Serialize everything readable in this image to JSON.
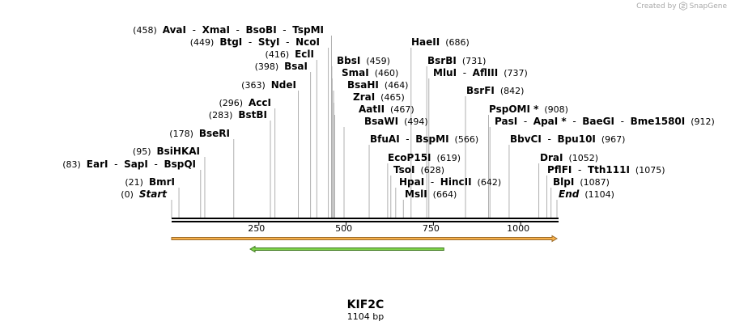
{
  "watermark": {
    "text": "Created by",
    "brand": "SnapGene"
  },
  "sequence": {
    "name": "KIF2C",
    "length_label": "1104 bp",
    "length": 1104
  },
  "ruler_ticks": [
    {
      "value": 250,
      "label": "250"
    },
    {
      "value": 500,
      "label": "500"
    },
    {
      "value": 750,
      "label": "750"
    },
    {
      "value": 1000,
      "label": "1000"
    }
  ],
  "features": [
    {
      "name": "orf-orange",
      "start": 0,
      "end": 1104,
      "direction": "forward",
      "color": "#f7b04a",
      "edge_color": "#9a6a2a"
    },
    {
      "name": "orf-green",
      "start": 225,
      "end": 780,
      "direction": "reverse",
      "color": "#7fd34a",
      "edge_color": "#3f7a1f"
    }
  ],
  "sites": [
    {
      "pos": 458,
      "names": [
        "AvaI",
        "XmaI",
        "BsoBI",
        "TspMI"
      ],
      "pos_label": "(458)",
      "side": "left",
      "star": [],
      "italic": false
    },
    {
      "pos": 449,
      "names": [
        "BtgI",
        "StyI",
        "NcoI"
      ],
      "pos_label": "(449)",
      "side": "left",
      "star": [],
      "italic": false
    },
    {
      "pos": 416,
      "names": [
        "EclI"
      ],
      "pos_label": "(416)",
      "side": "left",
      "star": [],
      "italic": false
    },
    {
      "pos": 398,
      "names": [
        "BsaI"
      ],
      "pos_label": "(398)",
      "side": "left",
      "star": [],
      "italic": false
    },
    {
      "pos": 363,
      "names": [
        "NdeI"
      ],
      "pos_label": "(363)",
      "side": "left",
      "star": [],
      "italic": false
    },
    {
      "pos": 296,
      "names": [
        "AccI"
      ],
      "pos_label": "(296)",
      "side": "left",
      "star": [],
      "italic": false
    },
    {
      "pos": 283,
      "names": [
        "BstBI"
      ],
      "pos_label": "(283)",
      "side": "left",
      "star": [],
      "italic": false
    },
    {
      "pos": 178,
      "names": [
        "BseRI"
      ],
      "pos_label": "(178)",
      "side": "left",
      "star": [],
      "italic": false
    },
    {
      "pos": 95,
      "names": [
        "BsiHKAI"
      ],
      "pos_label": "(95)",
      "side": "left",
      "star": [],
      "italic": false
    },
    {
      "pos": 83,
      "names": [
        "EarI",
        "SapI",
        "BspQI"
      ],
      "pos_label": "(83)",
      "side": "left",
      "star": [],
      "italic": false
    },
    {
      "pos": 21,
      "names": [
        "BmrI"
      ],
      "pos_label": "(21)",
      "side": "left",
      "star": [],
      "italic": false
    },
    {
      "pos": 0,
      "names": [
        "Start"
      ],
      "pos_label": "(0)",
      "side": "left",
      "star": [],
      "italic": true
    },
    {
      "pos": 686,
      "names": [
        "HaeII"
      ],
      "pos_label": "(686)",
      "side": "right",
      "star": [],
      "italic": false
    },
    {
      "pos": 459,
      "names": [
        "BbsI"
      ],
      "pos_label": "(459)",
      "side": "right",
      "star": [],
      "italic": false
    },
    {
      "pos": 731,
      "names": [
        "BsrBI"
      ],
      "pos_label": "(731)",
      "side": "right",
      "star": [],
      "italic": false
    },
    {
      "pos": 460,
      "names": [
        "SmaI"
      ],
      "pos_label": "(460)",
      "side": "right",
      "star": [],
      "italic": false
    },
    {
      "pos": 737,
      "names": [
        "MluI",
        "AflIII"
      ],
      "pos_label": "(737)",
      "side": "right",
      "star": [],
      "italic": false
    },
    {
      "pos": 464,
      "names": [
        "BsaHI"
      ],
      "pos_label": "(464)",
      "side": "right",
      "star": [],
      "italic": false
    },
    {
      "pos": 842,
      "names": [
        "BsrFI"
      ],
      "pos_label": "(842)",
      "side": "right",
      "star": [],
      "italic": false
    },
    {
      "pos": 465,
      "names": [
        "ZraI"
      ],
      "pos_label": "(465)",
      "side": "right",
      "star": [],
      "italic": false
    },
    {
      "pos": 908,
      "names": [
        "PspOMI"
      ],
      "pos_label": "(908)",
      "side": "right",
      "star": [
        0
      ],
      "italic": false
    },
    {
      "pos": 467,
      "names": [
        "AatII"
      ],
      "pos_label": "(467)",
      "side": "right",
      "star": [],
      "italic": false
    },
    {
      "pos": 912,
      "names": [
        "PasI",
        "ApaI",
        "BaeGI",
        "Bme1580I"
      ],
      "pos_label": "(912)",
      "side": "right",
      "star": [
        1
      ],
      "italic": false
    },
    {
      "pos": 494,
      "names": [
        "BsaWI"
      ],
      "pos_label": "(494)",
      "side": "right",
      "star": [],
      "italic": false
    },
    {
      "pos": 566,
      "names": [
        "BfuAI",
        "BspMI"
      ],
      "pos_label": "(566)",
      "side": "right",
      "star": [],
      "italic": false
    },
    {
      "pos": 967,
      "names": [
        "BbvCI",
        "Bpu10I"
      ],
      "pos_label": "(967)",
      "side": "right",
      "star": [],
      "italic": false
    },
    {
      "pos": 619,
      "names": [
        "EcoP15I"
      ],
      "pos_label": "(619)",
      "side": "right",
      "star": [],
      "italic": false
    },
    {
      "pos": 1052,
      "names": [
        "DraI"
      ],
      "pos_label": "(1052)",
      "side": "right",
      "star": [],
      "italic": false
    },
    {
      "pos": 628,
      "names": [
        "TsoI"
      ],
      "pos_label": "(628)",
      "side": "right",
      "star": [],
      "italic": false
    },
    {
      "pos": 1075,
      "names": [
        "PflFI",
        "Tth111I"
      ],
      "pos_label": "(1075)",
      "side": "right",
      "star": [],
      "italic": false
    },
    {
      "pos": 642,
      "names": [
        "HpaI",
        "HincII"
      ],
      "pos_label": "(642)",
      "side": "right",
      "star": [],
      "italic": false
    },
    {
      "pos": 1087,
      "names": [
        "BlpI"
      ],
      "pos_label": "(1087)",
      "side": "right",
      "star": [],
      "italic": false
    },
    {
      "pos": 664,
      "names": [
        "MslI"
      ],
      "pos_label": "(664)",
      "side": "right",
      "star": [],
      "italic": false
    },
    {
      "pos": 1104,
      "names": [
        "End"
      ],
      "pos_label": "(1104)",
      "side": "right",
      "star": [],
      "italic": true
    }
  ]
}
